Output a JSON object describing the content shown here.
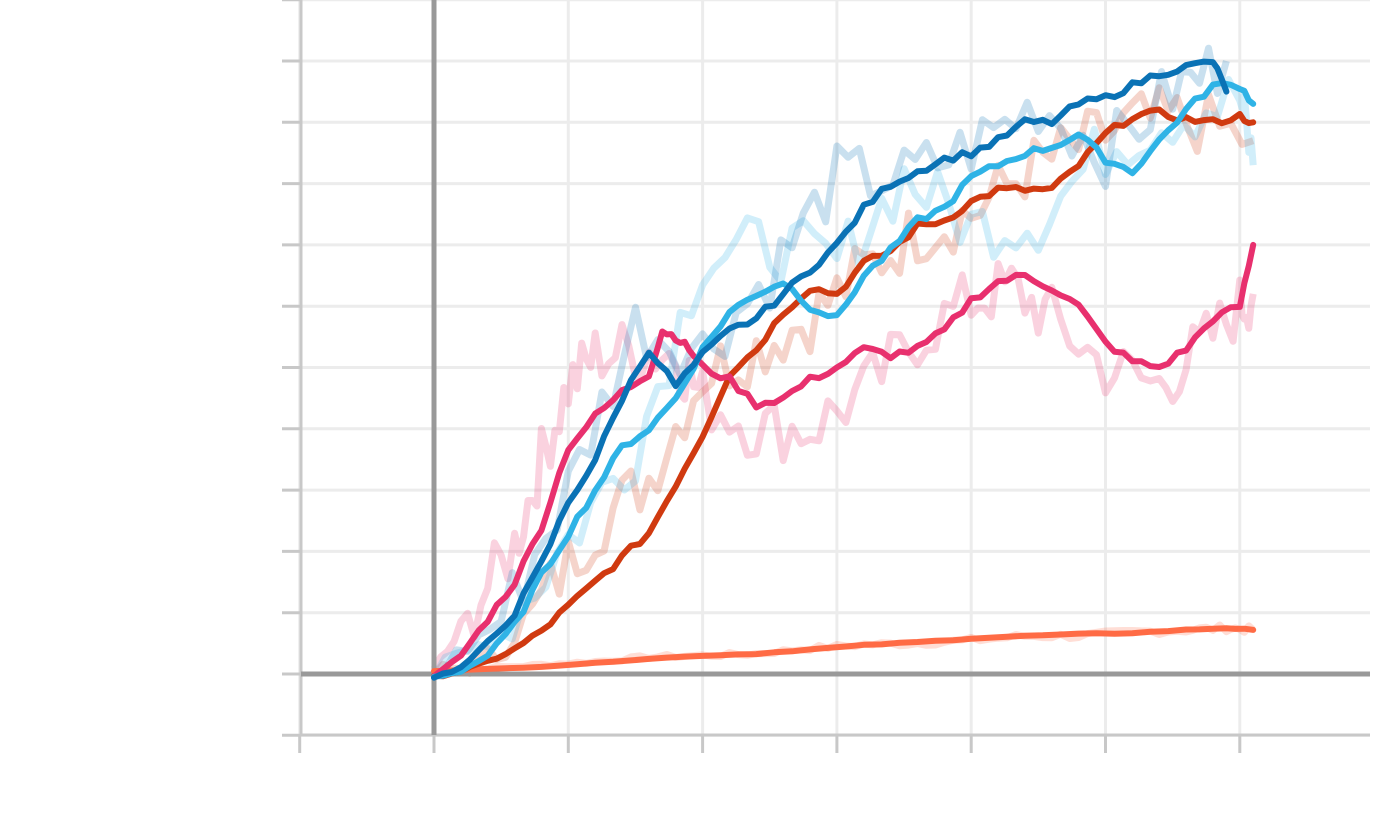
{
  "chart_data": {
    "type": "line",
    "title": "",
    "xlabel": "",
    "ylabel": "",
    "xlim": [
      -1,
      7
    ],
    "ylim": [
      -1,
      11
    ],
    "x_ticks": [
      -1,
      0,
      1,
      2,
      3,
      4,
      5,
      6
    ],
    "y_ticks": [
      -1,
      0,
      1,
      2,
      3,
      4,
      5,
      6,
      7,
      8,
      9,
      10,
      11
    ],
    "grid": true,
    "legend": "none",
    "axis_color": "#999999",
    "grid_color": "#ececec",
    "series": [
      {
        "color": "#ff6b45",
        "raw": [
          [
            0,
            0
          ],
          [
            0.4,
            0.1
          ],
          [
            0.8,
            0.15
          ],
          [
            1.2,
            0.2
          ],
          [
            1.6,
            0.28
          ],
          [
            2,
            0.3
          ],
          [
            2.4,
            0.33
          ],
          [
            2.8,
            0.42
          ],
          [
            3.2,
            0.48
          ],
          [
            3.6,
            0.5
          ],
          [
            4,
            0.55
          ],
          [
            4.4,
            0.62
          ],
          [
            4.8,
            0.62
          ],
          [
            5.2,
            0.68
          ],
          [
            5.6,
            0.72
          ],
          [
            5.9,
            0.75
          ],
          [
            6.1,
            0.72
          ]
        ],
        "values": [
          [
            0,
            0.05
          ],
          [
            0.4,
            0.08
          ],
          [
            0.8,
            0.12
          ],
          [
            1.2,
            0.18
          ],
          [
            1.6,
            0.25
          ],
          [
            2,
            0.3
          ],
          [
            2.4,
            0.33
          ],
          [
            2.8,
            0.4
          ],
          [
            3.2,
            0.47
          ],
          [
            3.6,
            0.52
          ],
          [
            4,
            0.58
          ],
          [
            4.4,
            0.62
          ],
          [
            4.8,
            0.65
          ],
          [
            5.2,
            0.67
          ],
          [
            5.6,
            0.72
          ],
          [
            5.9,
            0.75
          ],
          [
            6.1,
            0.72
          ]
        ]
      },
      {
        "color": "#d03a10",
        "raw": [
          [
            0,
            0
          ],
          [
            0.4,
            0.2
          ],
          [
            0.8,
            1.2
          ],
          [
            1.2,
            2.4
          ],
          [
            1.6,
            3.2
          ],
          [
            2,
            4.9
          ],
          [
            2.4,
            5.3
          ],
          [
            2.8,
            5.8
          ],
          [
            3.2,
            6.6
          ],
          [
            3.6,
            7.2
          ],
          [
            4,
            7.5
          ],
          [
            4.4,
            8.2
          ],
          [
            4.8,
            8.6
          ],
          [
            5.2,
            9.0
          ],
          [
            5.6,
            9.05
          ],
          [
            6.1,
            8.7
          ]
        ],
        "values": [
          [
            0,
            -0.05
          ],
          [
            0.2,
            0.05
          ],
          [
            0.4,
            0.2
          ],
          [
            0.6,
            0.4
          ],
          [
            0.8,
            0.7
          ],
          [
            1.0,
            1.1
          ],
          [
            1.2,
            1.5
          ],
          [
            1.4,
            1.9
          ],
          [
            1.6,
            2.3
          ],
          [
            1.8,
            3.1
          ],
          [
            2.0,
            3.9
          ],
          [
            2.2,
            4.9
          ],
          [
            2.4,
            5.3
          ],
          [
            2.6,
            5.9
          ],
          [
            2.8,
            6.3
          ],
          [
            3.0,
            6.2
          ],
          [
            3.2,
            6.7
          ],
          [
            3.4,
            6.9
          ],
          [
            3.6,
            7.3
          ],
          [
            3.8,
            7.4
          ],
          [
            4.0,
            7.7
          ],
          [
            4.2,
            7.9
          ],
          [
            4.4,
            7.9
          ],
          [
            4.6,
            7.9
          ],
          [
            4.8,
            8.3
          ],
          [
            5.0,
            8.8
          ],
          [
            5.2,
            9.1
          ],
          [
            5.4,
            9.15
          ],
          [
            5.6,
            9.05
          ],
          [
            5.8,
            9.0
          ],
          [
            6.0,
            9.1
          ],
          [
            6.1,
            9.0
          ]
        ]
      },
      {
        "color": "#e8306e",
        "raw": [
          [
            0,
            0
          ],
          [
            0.3,
            1.1
          ],
          [
            0.6,
            2.1
          ],
          [
            0.8,
            3.5
          ],
          [
            1.0,
            4.7
          ],
          [
            1.2,
            5.2
          ],
          [
            1.5,
            5.3
          ],
          [
            1.8,
            5.2
          ],
          [
            2.0,
            4.5
          ],
          [
            2.4,
            4.0
          ],
          [
            2.8,
            4.0
          ],
          [
            3.2,
            4.6
          ],
          [
            3.6,
            5.5
          ],
          [
            4.0,
            6.1
          ],
          [
            4.3,
            6.3
          ],
          [
            4.6,
            5.8
          ],
          [
            5.0,
            5.0
          ],
          [
            5.4,
            4.7
          ],
          [
            5.7,
            5.3
          ],
          [
            6.0,
            6.0
          ],
          [
            6.1,
            6.2
          ]
        ],
        "values": [
          [
            0,
            -0.05
          ],
          [
            0.2,
            0.3
          ],
          [
            0.4,
            0.9
          ],
          [
            0.6,
            1.5
          ],
          [
            0.8,
            2.4
          ],
          [
            1.0,
            3.7
          ],
          [
            1.2,
            4.2
          ],
          [
            1.4,
            4.6
          ],
          [
            1.6,
            4.9
          ],
          [
            1.7,
            5.6
          ],
          [
            1.8,
            5.5
          ],
          [
            1.9,
            5.3
          ],
          [
            2.0,
            5.0
          ],
          [
            2.2,
            4.8
          ],
          [
            2.4,
            4.4
          ],
          [
            2.6,
            4.5
          ],
          [
            2.8,
            4.8
          ],
          [
            3.0,
            5.0
          ],
          [
            3.2,
            5.3
          ],
          [
            3.4,
            5.2
          ],
          [
            3.6,
            5.3
          ],
          [
            3.8,
            5.6
          ],
          [
            4.0,
            6.1
          ],
          [
            4.2,
            6.4
          ],
          [
            4.4,
            6.5
          ],
          [
            4.6,
            6.3
          ],
          [
            4.8,
            6.0
          ],
          [
            5.0,
            5.4
          ],
          [
            5.2,
            5.1
          ],
          [
            5.4,
            5.0
          ],
          [
            5.6,
            5.3
          ],
          [
            5.8,
            5.8
          ],
          [
            6.0,
            6.0
          ],
          [
            6.1,
            7.0
          ]
        ]
      },
      {
        "color": "#2fb3e6",
        "raw": [
          [
            0,
            0
          ],
          [
            0.5,
            0.7
          ],
          [
            1.0,
            2.2
          ],
          [
            1.5,
            3.7
          ],
          [
            2.0,
            6.8
          ],
          [
            2.5,
            7.0
          ],
          [
            3.0,
            6.7
          ],
          [
            3.5,
            8.1
          ],
          [
            4.0,
            7.3
          ],
          [
            4.5,
            7.4
          ],
          [
            5.0,
            8.6
          ],
          [
            5.5,
            9.1
          ],
          [
            6.0,
            9.4
          ],
          [
            6.1,
            8.3
          ]
        ],
        "values": [
          [
            0,
            -0.05
          ],
          [
            0.2,
            0.05
          ],
          [
            0.4,
            0.3
          ],
          [
            0.6,
            0.8
          ],
          [
            0.8,
            1.6
          ],
          [
            1.0,
            2.3
          ],
          [
            1.2,
            3.0
          ],
          [
            1.4,
            3.7
          ],
          [
            1.6,
            4.0
          ],
          [
            1.8,
            4.5
          ],
          [
            2.0,
            5.3
          ],
          [
            2.2,
            5.9
          ],
          [
            2.4,
            6.2
          ],
          [
            2.6,
            6.4
          ],
          [
            2.8,
            6.0
          ],
          [
            3.0,
            5.8
          ],
          [
            3.2,
            6.5
          ],
          [
            3.4,
            6.9
          ],
          [
            3.6,
            7.4
          ],
          [
            3.8,
            7.6
          ],
          [
            4.0,
            8.1
          ],
          [
            4.2,
            8.3
          ],
          [
            4.4,
            8.5
          ],
          [
            4.6,
            8.6
          ],
          [
            4.8,
            8.8
          ],
          [
            5.0,
            8.4
          ],
          [
            5.2,
            8.2
          ],
          [
            5.4,
            8.7
          ],
          [
            5.6,
            9.2
          ],
          [
            5.8,
            9.6
          ],
          [
            6.0,
            9.6
          ],
          [
            6.1,
            9.3
          ]
        ]
      },
      {
        "color": "#0a72b5",
        "raw": [
          [
            0,
            0
          ],
          [
            0.5,
            0.9
          ],
          [
            1.0,
            3.0
          ],
          [
            1.5,
            5.7
          ],
          [
            2.0,
            5.3
          ],
          [
            2.5,
            6.5
          ],
          [
            3.0,
            8.1
          ],
          [
            3.5,
            8.1
          ],
          [
            4.0,
            8.6
          ],
          [
            4.5,
            9.3
          ],
          [
            5.0,
            8.5
          ],
          [
            5.5,
            9.5
          ],
          [
            5.9,
            10.0
          ]
        ],
        "values": [
          [
            0,
            -0.05
          ],
          [
            0.2,
            0.1
          ],
          [
            0.4,
            0.5
          ],
          [
            0.6,
            1.0
          ],
          [
            0.8,
            1.8
          ],
          [
            1.0,
            2.8
          ],
          [
            1.2,
            3.5
          ],
          [
            1.4,
            4.5
          ],
          [
            1.6,
            5.3
          ],
          [
            1.8,
            4.7
          ],
          [
            2.0,
            5.2
          ],
          [
            2.2,
            5.6
          ],
          [
            2.4,
            5.8
          ],
          [
            2.6,
            6.2
          ],
          [
            2.8,
            6.6
          ],
          [
            3.0,
            7.0
          ],
          [
            3.2,
            7.6
          ],
          [
            3.4,
            8.0
          ],
          [
            3.6,
            8.2
          ],
          [
            3.8,
            8.4
          ],
          [
            4.0,
            8.5
          ],
          [
            4.2,
            8.7
          ],
          [
            4.4,
            9.0
          ],
          [
            4.6,
            9.0
          ],
          [
            4.8,
            9.3
          ],
          [
            5.0,
            9.4
          ],
          [
            5.2,
            9.6
          ],
          [
            5.4,
            9.8
          ],
          [
            5.6,
            9.9
          ],
          [
            5.8,
            10.0
          ],
          [
            5.9,
            9.5
          ]
        ]
      }
    ]
  }
}
